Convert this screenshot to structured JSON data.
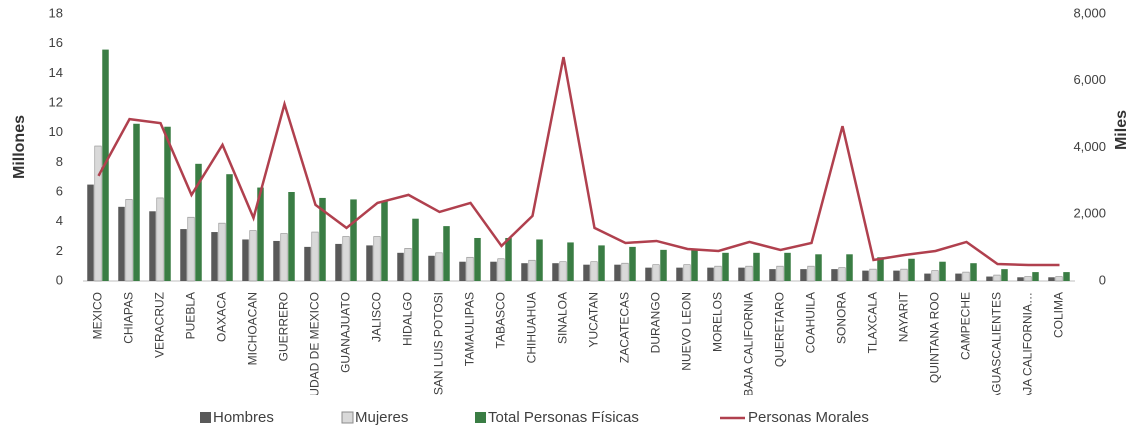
{
  "chart_data": {
    "type": "bar_line",
    "y_label": "Millones",
    "y2_label": "Miles",
    "categories": [
      "MEXICO",
      "CHIAPAS",
      "VERACRUZ",
      "PUEBLA",
      "OAXACA",
      "MICHOACAN",
      "GUERRERO",
      "CIUDAD DE MEXICO",
      "GUANAJUATO",
      "JALISCO",
      "HIDALGO",
      "SAN LUIS POTOSI",
      "TAMAULIPAS",
      "TABASCO",
      "CHIHUAHUA",
      "SINALOA",
      "YUCATAN",
      "ZACATECAS",
      "DURANGO",
      "NUEVO LEON",
      "MORELOS",
      "BAJA CALIFORNIA",
      "QUERETARO",
      "COAHUILA",
      "SONORA",
      "TLAXCALA",
      "NAYARIT",
      "QUINTANA ROO",
      "CAMPECHE",
      "AGUASCALIENTES",
      "BAJA CALIFORNIA…",
      "COLIMA"
    ],
    "series": [
      {
        "name": "Hombres",
        "color": "#595959",
        "values": [
          6.5,
          5.0,
          4.7,
          3.5,
          3.3,
          2.8,
          2.7,
          2.3,
          2.5,
          2.4,
          1.9,
          1.7,
          1.3,
          1.3,
          1.2,
          1.2,
          1.1,
          1.1,
          0.9,
          0.9,
          0.9,
          0.9,
          0.8,
          0.8,
          0.8,
          0.7,
          0.7,
          0.5,
          0.5,
          0.3,
          0.25,
          0.25
        ]
      },
      {
        "name": "Mujeres",
        "color": "#d9d9d9",
        "values": [
          9.1,
          5.5,
          5.6,
          4.3,
          3.9,
          3.4,
          3.2,
          3.3,
          3.0,
          3.0,
          2.2,
          1.9,
          1.6,
          1.5,
          1.4,
          1.3,
          1.3,
          1.2,
          1.1,
          1.1,
          1.0,
          1.0,
          1.0,
          1.0,
          0.9,
          0.8,
          0.8,
          0.7,
          0.6,
          0.4,
          0.3,
          0.3
        ]
      },
      {
        "name": "Total Personas Físicas",
        "color": "#3a7d44",
        "values": [
          15.6,
          10.6,
          10.4,
          7.9,
          7.2,
          6.3,
          6.0,
          5.6,
          5.5,
          5.4,
          4.2,
          3.7,
          2.9,
          2.9,
          2.8,
          2.6,
          2.4,
          2.3,
          2.1,
          2.1,
          1.9,
          1.9,
          1.9,
          1.8,
          1.8,
          1.6,
          1.5,
          1.3,
          1.2,
          0.8,
          0.6,
          0.6
        ]
      },
      {
        "name": "Personas Morales",
        "color": "#b0404e",
        "type": "line",
        "axis": "y2",
        "values": [
          3150,
          4850,
          4730,
          2580,
          4080,
          1890,
          5300,
          2280,
          1590,
          2340,
          2580,
          2070,
          2340,
          1050,
          1950,
          6710,
          1590,
          1140,
          1200,
          960,
          900,
          1170,
          930,
          1140,
          4640,
          630,
          780,
          900,
          1170,
          510,
          480,
          480
        ]
      }
    ],
    "ylim": [
      0,
      18
    ],
    "yticks": [
      0,
      2,
      4,
      6,
      8,
      10,
      12,
      14,
      16,
      18
    ],
    "y2lim": [
      0,
      8000
    ],
    "y2ticks": [
      0,
      {
        "value": 2000,
        "label": "2,000"
      },
      {
        "value": 4000,
        "label": "4,000"
      },
      {
        "value": 6000,
        "label": "6,000"
      },
      {
        "value": 8000,
        "label": "8,000"
      }
    ],
    "legend": "bottom"
  }
}
